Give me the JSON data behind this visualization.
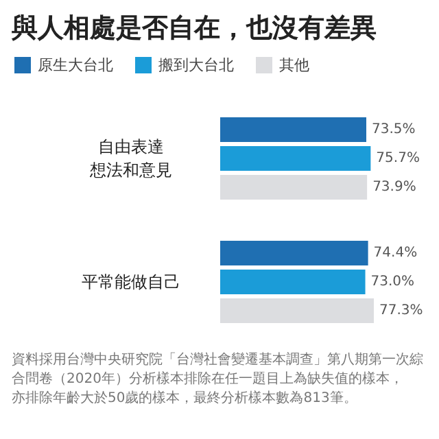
{
  "chart_data": {
    "type": "bar",
    "orientation": "horizontal",
    "title": "與人相處是否自在，也沒有差異",
    "categories": [
      "自由表達想法和意見",
      "平常能做自己"
    ],
    "series": [
      {
        "name": "原生大台北",
        "color": "#1f6fb2",
        "values": [
          73.5,
          74.4
        ],
        "value_labels": [
          "73.5%",
          "74.4%"
        ]
      },
      {
        "name": "搬到大台北",
        "color": "#1b9cd8",
        "values": [
          75.7,
          73.0
        ],
        "value_labels": [
          "75.7%",
          "73.0%"
        ]
      },
      {
        "name": "其他",
        "color": "#dcdde0",
        "values": [
          73.9,
          77.3
        ],
        "value_labels": [
          "73.9%",
          "77.3%"
        ]
      }
    ],
    "legend": "top left",
    "annotations": [
      "資料採用台灣中央研究院「台灣社會變遷基本調查」第八期第一次綜合問卷（2020年）分析樣本排除在任一題目上為缺失值的樣本，亦排除年齡大於50歲的樣本，最終分析樣本數為813筆。"
    ]
  }
}
